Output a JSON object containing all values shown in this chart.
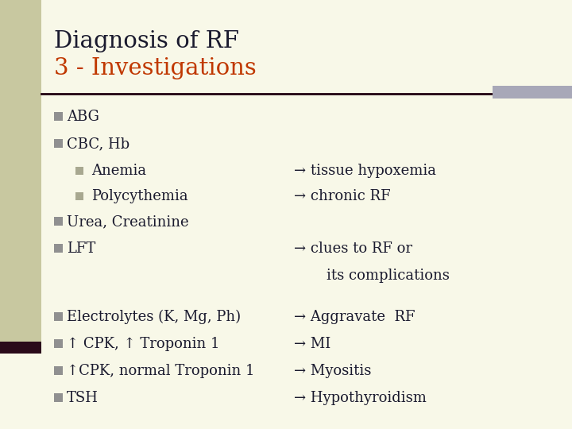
{
  "bg_color": "#f8f8e8",
  "left_stripe_color": "#c8c8a0",
  "left_stripe_bottom_color": "#2a0a1a",
  "accent_bar_color": "#a8a8b8",
  "title_line1": "Diagnosis of RF",
  "title_line2": "3 - Investigations",
  "title_line1_color": "#1a1a2e",
  "title_line2_color": "#c03800",
  "separator_color": "#200010",
  "bullet_color": "#909090",
  "sub_bullet_color": "#a8a890",
  "text_color": "#1a1a2e",
  "items": [
    {
      "level": 0,
      "left": "ABG",
      "right": ""
    },
    {
      "level": 0,
      "left": "CBC, Hb",
      "right": ""
    },
    {
      "level": 1,
      "left": "Anemia",
      "right": "→ tissue hypoxemia"
    },
    {
      "level": 1,
      "left": "Polycythemia",
      "right": "→ chronic RF"
    },
    {
      "level": 0,
      "left": "Urea, Creatinine",
      "right": ""
    },
    {
      "level": 0,
      "left": "LFT",
      "right": "→ clues to RF or"
    },
    {
      "level": -1,
      "left": "",
      "right": "    its complications"
    },
    {
      "level": -2,
      "left": "",
      "right": ""
    },
    {
      "level": 0,
      "left": "Electrolytes (K, Mg, Ph)",
      "right": "→ Aggravate  RF"
    },
    {
      "level": 0,
      "left": "↑ CPK, ↑ Troponin 1",
      "right": "→ MI"
    },
    {
      "level": 0,
      "left": "↑CPK, normal Troponin 1",
      "right": "→ Myositis"
    },
    {
      "level": 0,
      "left": "TSH",
      "right": "→ Hypothyroidism"
    }
  ],
  "figsize": [
    7.2,
    5.4
  ],
  "dpi": 100
}
